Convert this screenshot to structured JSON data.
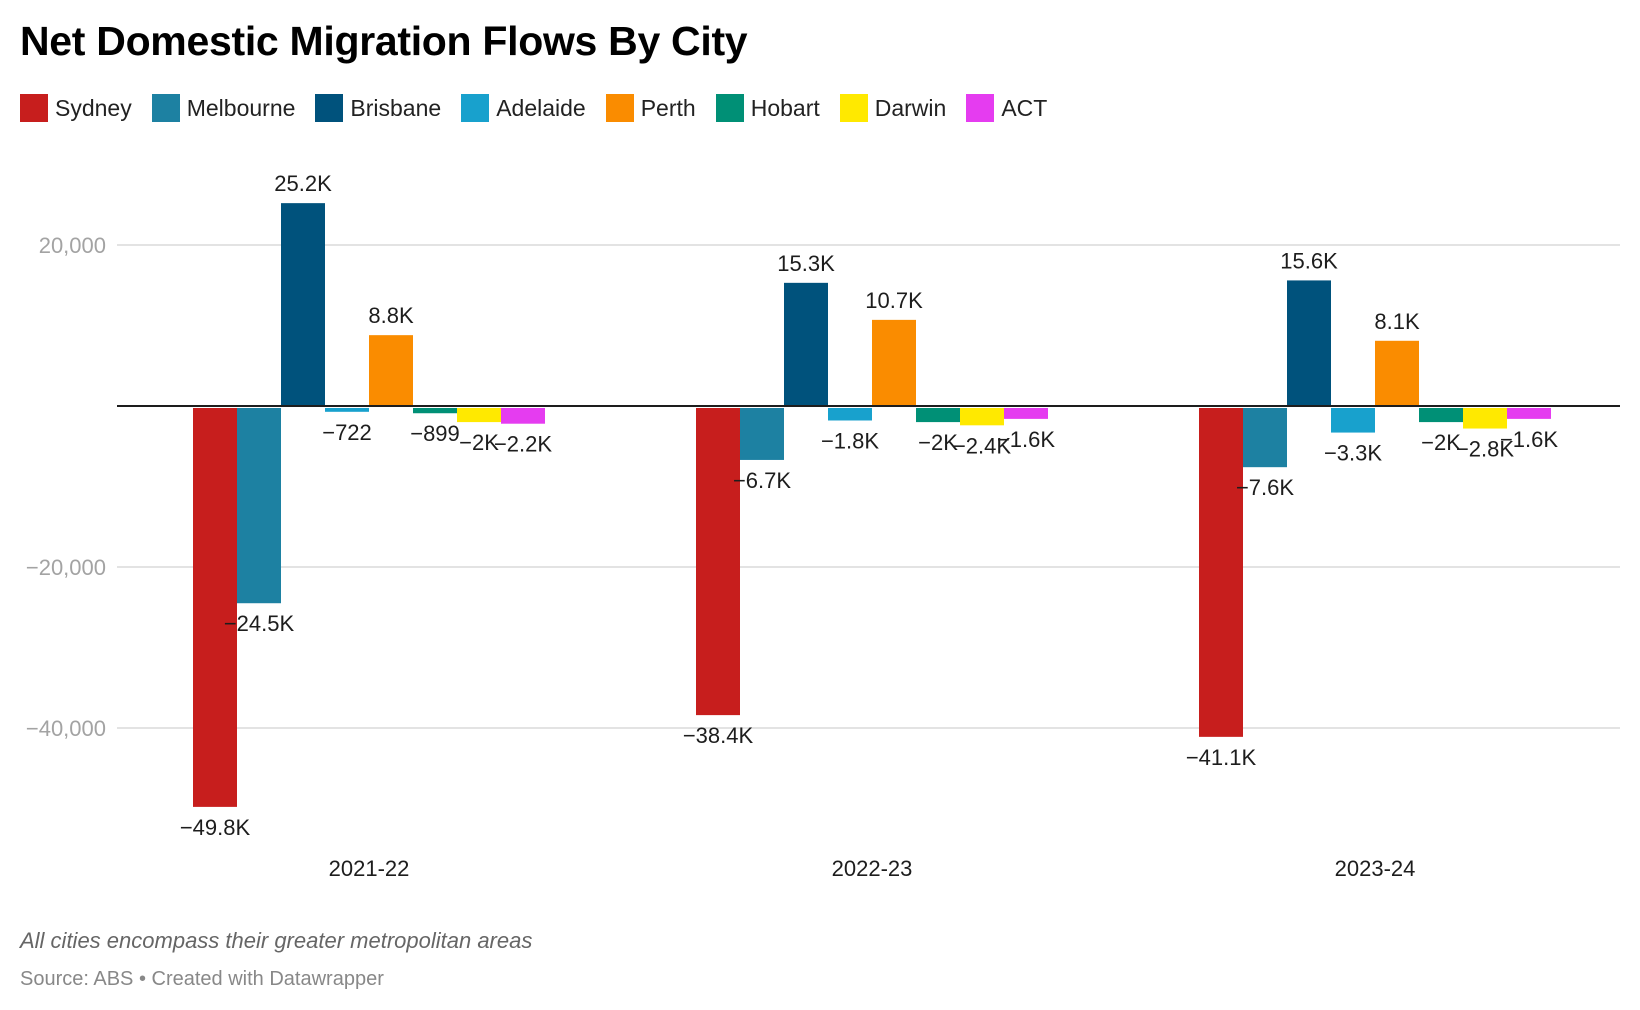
{
  "title": "Net Domestic Migration Flows By City",
  "note": "All cities encompass their greater metropolitan areas",
  "source": "Source: ABS • Created with Datawrapper",
  "legend": [
    {
      "name": "Sydney",
      "color": "#c71e1d"
    },
    {
      "name": "Melbourne",
      "color": "#1d81a2"
    },
    {
      "name": "Brisbane",
      "color": "#00527c"
    },
    {
      "name": "Adelaide",
      "color": "#18a1cd"
    },
    {
      "name": "Perth",
      "color": "#fa8c00"
    },
    {
      "name": "Hobart",
      "color": "#009076"
    },
    {
      "name": "Darwin",
      "color": "#ffe900"
    },
    {
      "name": "ACT",
      "color": "#e53cf0"
    }
  ],
  "chart_data": {
    "type": "bar",
    "title": "Net Domestic Migration Flows By City",
    "xlabel": "",
    "ylabel": "",
    "categories": [
      "2021-22",
      "2022-23",
      "2023-24"
    ],
    "yticks": [
      20000,
      -20000,
      -40000
    ],
    "ytick_labels": [
      "20,000",
      "−20,000",
      "−40,000"
    ],
    "ylim": [
      -52000,
      30000
    ],
    "grid": true,
    "legend_position": "top-left",
    "series": [
      {
        "name": "Sydney",
        "color": "#c71e1d",
        "values": [
          -49800,
          -38400,
          -41100
        ],
        "labels": [
          "−49.8K",
          "−38.4K",
          "−41.1K"
        ]
      },
      {
        "name": "Melbourne",
        "color": "#1d81a2",
        "values": [
          -24500,
          -6700,
          -7600
        ],
        "labels": [
          "−24.5K",
          "−6.7K",
          "−7.6K"
        ]
      },
      {
        "name": "Brisbane",
        "color": "#00527c",
        "values": [
          25200,
          15300,
          15600
        ],
        "labels": [
          "25.2K",
          "15.3K",
          "15.6K"
        ]
      },
      {
        "name": "Adelaide",
        "color": "#18a1cd",
        "values": [
          -722,
          -1800,
          -3300
        ],
        "labels": [
          "−722",
          "−1.8K",
          "−3.3K"
        ]
      },
      {
        "name": "Perth",
        "color": "#fa8c00",
        "values": [
          8800,
          10700,
          8100
        ],
        "labels": [
          "8.8K",
          "10.7K",
          "8.1K"
        ]
      },
      {
        "name": "Hobart",
        "color": "#009076",
        "values": [
          -899,
          -2000,
          -2000
        ],
        "labels": [
          "−899",
          "−2K",
          "−2K"
        ]
      },
      {
        "name": "Darwin",
        "color": "#ffe900",
        "values": [
          -2000,
          -2400,
          -2800
        ],
        "labels": [
          "−2K",
          "−2.4K",
          "−2.8K"
        ]
      },
      {
        "name": "ACT",
        "color": "#e53cf0",
        "values": [
          -2200,
          -1600,
          -1600
        ],
        "labels": [
          "−2.2K",
          "−1.6K",
          "−1.6K"
        ]
      }
    ]
  }
}
